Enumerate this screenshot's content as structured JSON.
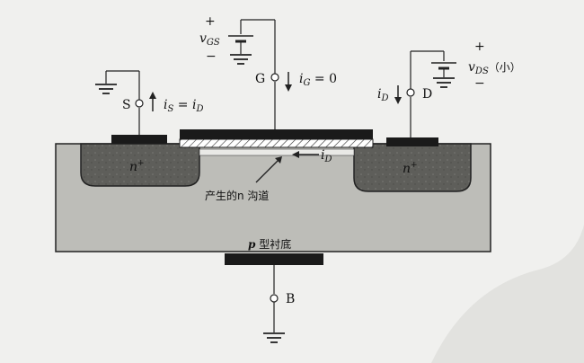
{
  "terminals": {
    "source": "S",
    "gate": "G",
    "drain": "D",
    "body": "B"
  },
  "currents": {
    "source": {
      "var": "i",
      "sub": "S",
      "rel": " = ",
      "rhs_var": "i",
      "rhs_sub": "D"
    },
    "gate": {
      "var": "i",
      "sub": "G",
      "rel": " = 0"
    },
    "drain": {
      "var": "i",
      "sub": "D"
    },
    "channel": {
      "var": "i",
      "sub": "D"
    }
  },
  "sources": {
    "vgs": {
      "var": "v",
      "sub": "GS",
      "plus": "+",
      "minus": "−"
    },
    "vds": {
      "var": "v",
      "sub": "DS",
      "note": "（小）",
      "plus": "+",
      "minus": "−"
    }
  },
  "regions": {
    "source_doping": {
      "var": "n",
      "sup": "+"
    },
    "drain_doping": {
      "var": "n",
      "sup": "+"
    },
    "channel_label": "产生的n 沟道",
    "substrate": {
      "var": "p",
      "text": " 型衬底"
    }
  },
  "colors": {
    "substrate": "#bdbdb8",
    "nplus": "#5e5e5a",
    "metal": "#1a1a1a",
    "oxide": "#ffffff",
    "background": "#f0f0ee"
  }
}
